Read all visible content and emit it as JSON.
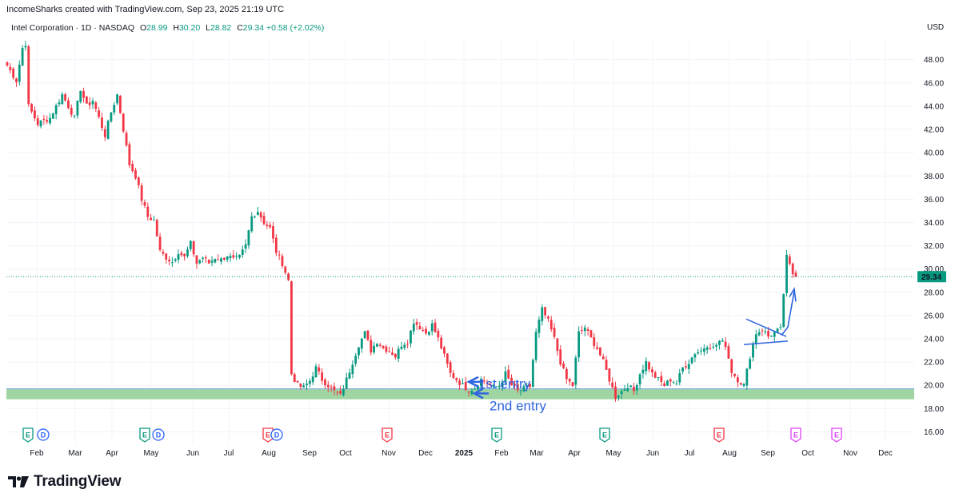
{
  "header": {
    "text": "IncomeSharks created with TradingView.com, Sep 23, 2025 21:19 UTC"
  },
  "legend": {
    "symbol": "Intel Corporation · 1D · NASDAQ",
    "open_label": "O",
    "open": "28.99",
    "high_label": "H",
    "high": "30.20",
    "low_label": "L",
    "low": "28.82",
    "close_label": "C",
    "close": "29.34",
    "change": "+0.58 (+2.02%)"
  },
  "currency": "USD",
  "footer": {
    "brand": "TradingView"
  },
  "colors": {
    "up": "#089981",
    "down": "#f23645",
    "price_line": "#089981",
    "support_zone": "#8fce93",
    "annotation": "#2e64e0",
    "earnings": "#089981",
    "earnings_red": "#f23645",
    "earnings_future": "#e040fb",
    "dividend": "#2962ff"
  },
  "chart_data": {
    "type": "candlestick",
    "title": "Intel Corporation · 1D · NASDAQ",
    "ylabel": "USD",
    "ylim": [
      15.0,
      49.7
    ],
    "yticks": [
      "48.00",
      "46.00",
      "44.00",
      "42.00",
      "40.00",
      "38.00",
      "36.00",
      "34.00",
      "32.00",
      "30.00",
      "28.00",
      "26.00",
      "24.00",
      "22.00",
      "20.00",
      "18.00",
      "16.00"
    ],
    "xticks": [
      "Feb",
      "Mar",
      "Apr",
      "May",
      "Jun",
      "Jul",
      "Aug",
      "Sep",
      "Oct",
      "Nov",
      "Dec",
      "2025",
      "Feb",
      "Mar",
      "Apr",
      "May",
      "Jun",
      "Jul",
      "Aug",
      "Sep",
      "Oct",
      "Nov",
      "Dec"
    ],
    "last_price": "29.34",
    "support_zone": [
      18.8,
      19.7
    ],
    "series_anchor_closes": [
      [
        0,
        47.5
      ],
      [
        3,
        46.2
      ],
      [
        5,
        49.0
      ],
      [
        6,
        49.4
      ],
      [
        7,
        44.0
      ],
      [
        10,
        42.5
      ],
      [
        14,
        43.0
      ],
      [
        18,
        45.0
      ],
      [
        20,
        44.0
      ],
      [
        22,
        43.0
      ],
      [
        24,
        45.5
      ],
      [
        26,
        44.0
      ],
      [
        28,
        44.5
      ],
      [
        30,
        43.0
      ],
      [
        32,
        41.5
      ],
      [
        34,
        43.5
      ],
      [
        36,
        45.0
      ],
      [
        38,
        42.0
      ],
      [
        40,
        39.0
      ],
      [
        42,
        38.0
      ],
      [
        44,
        36.0
      ],
      [
        46,
        34.5
      ],
      [
        48,
        34.2
      ],
      [
        50,
        31.5
      ],
      [
        52,
        31.0
      ],
      [
        54,
        30.6
      ],
      [
        56,
        31.5
      ],
      [
        58,
        31.0
      ],
      [
        60,
        32.2
      ],
      [
        62,
        30.5
      ],
      [
        64,
        31.0
      ],
      [
        66,
        30.5
      ],
      [
        68,
        31.0
      ],
      [
        70,
        30.8
      ],
      [
        72,
        31.2
      ],
      [
        74,
        30.8
      ],
      [
        76,
        31.0
      ],
      [
        78,
        32.0
      ],
      [
        80,
        34.5
      ],
      [
        82,
        35.0
      ],
      [
        84,
        34.0
      ],
      [
        86,
        33.5
      ],
      [
        88,
        31.5
      ],
      [
        90,
        30.5
      ],
      [
        92,
        29.0
      ],
      [
        93,
        21.0
      ],
      [
        95,
        20.0
      ],
      [
        97,
        19.8
      ],
      [
        99,
        20.4
      ],
      [
        101,
        21.5
      ],
      [
        103,
        20.5
      ],
      [
        105,
        20.0
      ],
      [
        107,
        19.5
      ],
      [
        109,
        19.1
      ],
      [
        111,
        20.5
      ],
      [
        113,
        22.0
      ],
      [
        115,
        23.5
      ],
      [
        117,
        24.5
      ],
      [
        119,
        23.0
      ],
      [
        121,
        23.8
      ],
      [
        123,
        23.2
      ],
      [
        125,
        23.0
      ],
      [
        127,
        22.5
      ],
      [
        129,
        23.5
      ],
      [
        131,
        23.8
      ],
      [
        133,
        25.5
      ],
      [
        135,
        25.0
      ],
      [
        137,
        24.5
      ],
      [
        139,
        25.2
      ],
      [
        141,
        24.0
      ],
      [
        143,
        22.5
      ],
      [
        145,
        21.0
      ],
      [
        147,
        20.5
      ],
      [
        149,
        20.0
      ],
      [
        151,
        19.6
      ],
      [
        153,
        19.8
      ],
      [
        155,
        20.5
      ],
      [
        157,
        20.2
      ],
      [
        159,
        19.8
      ],
      [
        161,
        20.0
      ],
      [
        163,
        21.0
      ],
      [
        165,
        20.0
      ],
      [
        167,
        19.5
      ],
      [
        169,
        19.7
      ],
      [
        171,
        19.9
      ],
      [
        173,
        24.5
      ],
      [
        175,
        26.5
      ],
      [
        177,
        25.5
      ],
      [
        179,
        24.0
      ],
      [
        181,
        22.0
      ],
      [
        183,
        20.5
      ],
      [
        185,
        20.0
      ],
      [
        187,
        24.5
      ],
      [
        189,
        25.0
      ],
      [
        191,
        24.0
      ],
      [
        193,
        23.2
      ],
      [
        195,
        22.0
      ],
      [
        197,
        20.5
      ],
      [
        199,
        19.0
      ],
      [
        201,
        19.5
      ],
      [
        203,
        20.0
      ],
      [
        205,
        19.5
      ],
      [
        207,
        21.0
      ],
      [
        209,
        22.0
      ],
      [
        211,
        21.0
      ],
      [
        213,
        20.5
      ],
      [
        215,
        20.0
      ],
      [
        217,
        20.5
      ],
      [
        219,
        20.2
      ],
      [
        221,
        21.5
      ],
      [
        223,
        22.0
      ],
      [
        225,
        22.8
      ],
      [
        227,
        23.0
      ],
      [
        229,
        23.5
      ],
      [
        231,
        23.2
      ],
      [
        233,
        23.8
      ],
      [
        235,
        23.5
      ],
      [
        237,
        21.2
      ],
      [
        239,
        20.5
      ],
      [
        241,
        20.0
      ],
      [
        243,
        22.5
      ],
      [
        245,
        24.5
      ],
      [
        247,
        24.8
      ],
      [
        249,
        24.2
      ],
      [
        251,
        24.6
      ],
      [
        253,
        24.8
      ],
      [
        255,
        31.0
      ],
      [
        257,
        29.6
      ],
      [
        258,
        29.34
      ]
    ],
    "annotations": [
      {
        "text": "1st entry",
        "points_to": 20.3
      },
      {
        "text": "2nd entry",
        "points_to": 19.3
      }
    ],
    "events": [
      "E",
      "D",
      "E",
      "D",
      "E",
      "D",
      "E",
      "E",
      "E",
      "E",
      "E",
      "E"
    ],
    "pattern": "pennant before breakout arrow"
  }
}
